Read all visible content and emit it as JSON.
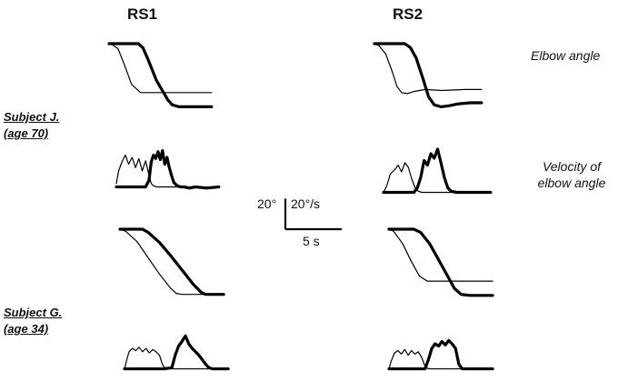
{
  "columns": [
    "RS1",
    "RS2"
  ],
  "subjects": [
    {
      "name": "Subject J.",
      "age": "(age 70)"
    },
    {
      "name": "Subject G.",
      "age": "(age 34)"
    }
  ],
  "row_labels": {
    "angle": "Elbow angle",
    "velocity_line1": "Velocity of",
    "velocity_line2": "elbow angle"
  },
  "scale_bar": {
    "angle": "20°",
    "velocity": "20°/s",
    "time": "5 s"
  },
  "chart_data": {
    "type": "line",
    "units": {
      "time": "s",
      "angle": "deg",
      "velocity": "deg/s"
    },
    "scale": {
      "angle_deg": 20,
      "velocity_deg_per_s": 20,
      "time_s": 5
    },
    "panels": [
      {
        "subject": "Subject J.",
        "condition": "RS1",
        "kind": "angle",
        "series": [
          {
            "style": "thin",
            "x": [
              0,
              0.3,
              0.8,
              1.4,
              2.0,
              2.8,
              9.1
            ],
            "y": [
              0,
              -1,
              -5,
              -22,
              -40,
              -48,
              -48
            ]
          },
          {
            "style": "thick",
            "x": [
              0,
              2.6,
              3.0,
              3.4,
              4.2,
              5.2,
              5.6,
              6.2,
              9.1
            ],
            "y": [
              0,
              0,
              -4,
              -14,
              -36,
              -55,
              -60,
              -62,
              -62
            ]
          }
        ]
      },
      {
        "subject": "Subject J.",
        "condition": "RS1",
        "kind": "velocity",
        "series": [
          {
            "style": "thin",
            "x": [
              0,
              0.2,
              0.5,
              0.8,
              1.1,
              1.4,
              1.7,
              2.0,
              2.3,
              2.6,
              2.9,
              3.1,
              3.3,
              3.6,
              4.0,
              4.6,
              5.2,
              6.0,
              7.0,
              8.0,
              9.1
            ],
            "y": [
              5,
              16,
              24,
              30,
              22,
              28,
              19,
              27,
              16,
              25,
              12,
              5,
              3,
              2,
              2,
              2,
              2,
              2,
              2,
              2,
              2
            ]
          },
          {
            "style": "thick",
            "x": [
              0,
              1.0,
              2.0,
              2.6,
              2.9,
              3.1,
              3.3,
              3.5,
              3.7,
              3.9,
              4.1,
              4.3,
              4.5,
              4.7,
              4.9,
              5.1,
              5.4,
              5.7,
              6.0,
              6.5,
              7.0,
              8.0,
              9.1
            ],
            "y": [
              2,
              2,
              2,
              2,
              8,
              24,
              30,
              27,
              33,
              26,
              34,
              22,
              28,
              19,
              12,
              6,
              3,
              2,
              2,
              1,
              2,
              1,
              2
            ]
          }
        ]
      },
      {
        "subject": "Subject J.",
        "condition": "RS2",
        "kind": "angle",
        "series": [
          {
            "style": "thin",
            "x": [
              0,
              0.4,
              1.0,
              1.6,
              2.0,
              2.4,
              2.9,
              3.5,
              4.5,
              6.0,
              8.0,
              9.5
            ],
            "y": [
              0,
              -2,
              -10,
              -28,
              -42,
              -48,
              -49,
              -47,
              -45,
              -46,
              -45,
              -45
            ]
          },
          {
            "style": "thick",
            "x": [
              0,
              2.7,
              3.2,
              3.7,
              4.3,
              4.8,
              5.3,
              5.9,
              6.6,
              7.5,
              8.5,
              9.5
            ],
            "y": [
              0,
              0,
              -4,
              -14,
              -34,
              -52,
              -60,
              -62,
              -61,
              -59,
              -58,
              -58
            ]
          }
        ]
      },
      {
        "subject": "Subject J.",
        "condition": "RS2",
        "kind": "velocity",
        "series": [
          {
            "style": "thin",
            "x": [
              0,
              0.3,
              0.6,
              1.0,
              1.3,
              1.6,
              1.9,
              2.2,
              2.5,
              2.8,
              3.1,
              3.4,
              3.7,
              4.0,
              4.5,
              5.0,
              6.0,
              7.0,
              8.0,
              9.5
            ],
            "y": [
              2,
              8,
              18,
              22,
              26,
              20,
              28,
              24,
              14,
              6,
              3,
              2,
              2,
              2,
              2,
              2,
              2,
              2,
              2,
              2
            ]
          },
          {
            "style": "thick",
            "x": [
              0,
              1.5,
              2.7,
              3.0,
              3.3,
              3.6,
              3.9,
              4.2,
              4.5,
              4.8,
              5.1,
              5.4,
              5.7,
              6.0,
              6.5,
              7.0,
              8.0,
              9.5
            ],
            "y": [
              2,
              2,
              2,
              6,
              15,
              30,
              26,
              36,
              32,
              40,
              28,
              15,
              6,
              3,
              2,
              2,
              2,
              2
            ]
          }
        ]
      },
      {
        "subject": "Subject G.",
        "condition": "RS1",
        "kind": "angle",
        "series": [
          {
            "style": "thin",
            "x": [
              0,
              0.5,
              1.5,
              2.5,
              3.5,
              4.5,
              5.0,
              5.5,
              9.2
            ],
            "y": [
              0,
              -2,
              -12,
              -28,
              -44,
              -58,
              -63,
              -64,
              -64
            ]
          },
          {
            "style": "thick",
            "x": [
              0,
              2.0,
              2.5,
              3.5,
              4.5,
              5.5,
              6.5,
              7.2,
              7.6,
              9.2
            ],
            "y": [
              0,
              0,
              -3,
              -13,
              -26,
              -40,
              -54,
              -62,
              -64,
              -64
            ]
          }
        ]
      },
      {
        "subject": "Subject G.",
        "condition": "RS1",
        "kind": "velocity",
        "series": [
          {
            "style": "thin",
            "x": [
              0,
              0.2,
              0.4,
              0.7,
              1.0,
              1.3,
              1.6,
              1.9,
              2.2,
              2.5,
              2.8,
              3.1,
              3.4,
              3.7,
              4.0,
              4.5,
              5.5,
              7.0,
              9.2
            ],
            "y": [
              2,
              10,
              17,
              20,
              18,
              21,
              17,
              20,
              16,
              19,
              17,
              14,
              5,
              2,
              2,
              2,
              2,
              2,
              2
            ]
          },
          {
            "style": "thick",
            "x": [
              0,
              2.0,
              3.5,
              4.2,
              4.5,
              4.8,
              5.1,
              5.4,
              5.7,
              6.0,
              6.3,
              6.6,
              6.9,
              7.2,
              7.5,
              7.8,
              8.2,
              8.7,
              9.2
            ],
            "y": [
              2,
              2,
              2,
              3,
              14,
              22,
              26,
              31,
              24,
              20,
              17,
              14,
              10,
              6,
              3,
              2,
              2,
              2,
              2
            ]
          }
        ]
      },
      {
        "subject": "Subject G.",
        "condition": "RS2",
        "kind": "angle",
        "series": [
          {
            "style": "thin",
            "x": [
              0,
              0.4,
              1.2,
              2.0,
              2.7,
              3.4,
              3.8,
              5.0,
              7.0,
              9.2
            ],
            "y": [
              0,
              -2,
              -14,
              -32,
              -46,
              -51,
              -51,
              -51,
              -51,
              -51
            ]
          },
          {
            "style": "thick",
            "x": [
              0,
              2.2,
              2.8,
              3.6,
              4.4,
              5.2,
              5.8,
              6.4,
              7.2,
              9.2
            ],
            "y": [
              0,
              0,
              -3,
              -14,
              -30,
              -46,
              -58,
              -64,
              -65,
              -65
            ]
          }
        ]
      },
      {
        "subject": "Subject G.",
        "condition": "RS2",
        "kind": "velocity",
        "series": [
          {
            "style": "thin",
            "x": [
              0,
              0.2,
              0.5,
              0.8,
              1.1,
              1.4,
              1.7,
              2.0,
              2.3,
              2.6,
              2.9,
              3.2,
              3.5,
              4.0,
              5.0,
              6.5,
              8.0,
              9.2
            ],
            "y": [
              2,
              9,
              16,
              18,
              15,
              19,
              14,
              18,
              15,
              17,
              12,
              4,
              2,
              2,
              2,
              2,
              2,
              2
            ]
          },
          {
            "style": "thick",
            "x": [
              0,
              2.0,
              3.2,
              3.5,
              3.8,
              4.1,
              4.4,
              4.7,
              5.0,
              5.3,
              5.6,
              5.9,
              6.2,
              6.5,
              7.0,
              8.0,
              9.2
            ],
            "y": [
              2,
              2,
              2,
              10,
              20,
              24,
              22,
              26,
              23,
              27,
              24,
              20,
              6,
              2,
              2,
              2,
              2
            ]
          }
        ]
      }
    ]
  }
}
